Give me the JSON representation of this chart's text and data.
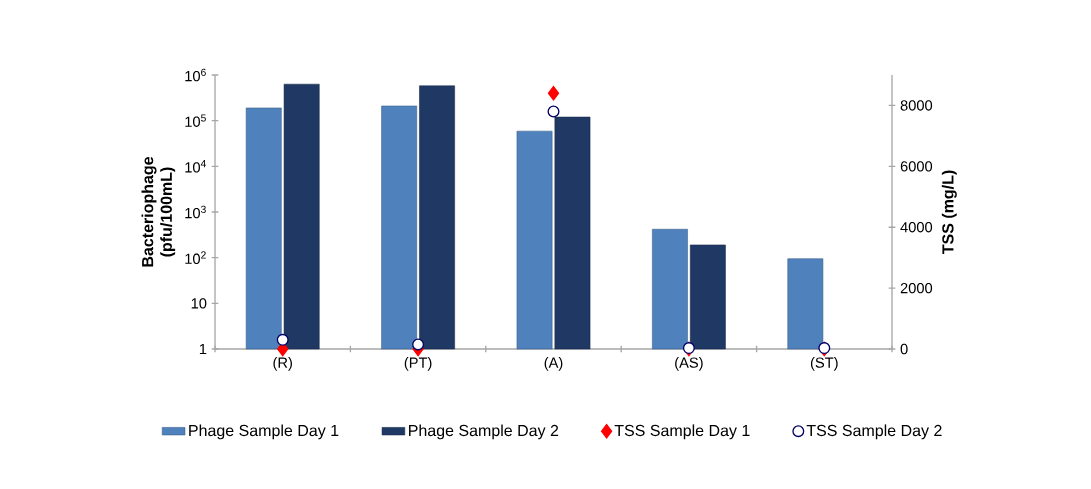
{
  "chart_data": {
    "type": "bar",
    "ylabel": "Bacteriophage (pfu/100mL)",
    "y2label": "TSS (mg/L)",
    "categories": [
      "(R)",
      "(PT)",
      "(A)",
      "(AS)",
      "(ST)"
    ],
    "series": [
      {
        "name": "Phage Sample Day 1",
        "color": "#4f81bd",
        "values": [
          190000,
          210000,
          59000,
          420,
          95
        ]
      },
      {
        "name": "Phage Sample Day 2",
        "color": "#1f3864",
        "values": [
          630000,
          580000,
          120000,
          190,
          null
        ]
      },
      {
        "name": "TSS Sample Day 1",
        "type": "scatter",
        "axis": "y2",
        "marker": "diamond",
        "color": "#ff0000",
        "values": [
          0,
          0,
          8400,
          0,
          0
        ]
      },
      {
        "name": "TSS Sample Day 2",
        "type": "scatter",
        "axis": "y2",
        "marker": "circle",
        "color": "#ffffff",
        "values": [
          300,
          150,
          7800,
          30,
          30
        ]
      }
    ],
    "log": "y",
    "ylim": [
      1,
      1000000
    ],
    "yticks": [
      1,
      10,
      {
        "value": 100,
        "label": "10$^{2}$"
      },
      {
        "value": 1000,
        "label": "10$^{3}$"
      },
      {
        "value": 10000,
        "label": "10$^{4}$"
      },
      {
        "value": 100000,
        "label": "10$^{5}$"
      },
      {
        "value": 1000000,
        "label": "10$^{6}$"
      }
    ],
    "y2lim": [
      0,
      9000
    ],
    "y2ticks": [
      0,
      2000,
      4000,
      6000,
      8000
    ],
    "legend": "bottom"
  }
}
